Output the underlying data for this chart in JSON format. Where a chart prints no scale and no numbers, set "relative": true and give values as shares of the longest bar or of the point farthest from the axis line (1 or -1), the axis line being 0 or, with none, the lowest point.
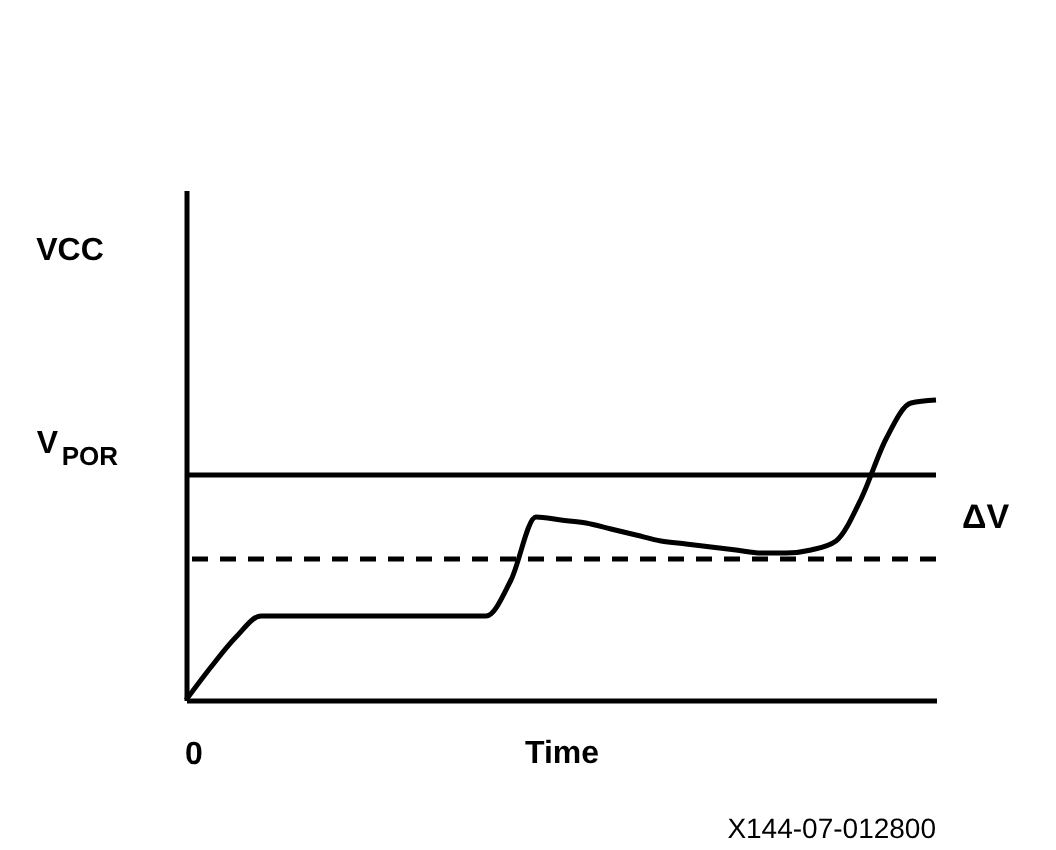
{
  "chart_data": {
    "type": "line",
    "relative": true,
    "ylabel": "VCC",
    "xlabel": "Time",
    "categories": [
      null,
      null,
      null,
      null,
      null,
      null,
      null,
      null,
      null,
      null,
      null,
      null,
      null,
      null,
      null,
      null,
      null,
      null,
      null,
      null,
      null,
      null,
      null,
      null,
      null,
      null,
      null,
      null,
      null,
      null,
      null
    ],
    "series": [
      {
        "color": "#000000",
        "values": [
          0,
          0.11,
          0.21,
          0.28,
          0.28,
          0.28,
          0.28,
          0.28,
          0.28,
          0.28,
          0.28,
          0.28,
          0.28,
          0.4,
          0.61,
          0.6,
          0.59,
          0.57,
          0.55,
          0.53,
          0.52,
          0.51,
          0.5,
          0.49,
          0.49,
          0.5,
          0.53,
          0.67,
          0.87,
          0.99,
          1
        ]
      }
    ],
    "ref_lines": [
      {
        "axis": "y",
        "value": 0.75,
        "label": "V$_{POR}$",
        "color": "#000000",
        "line_style": "solid"
      },
      {
        "axis": "y",
        "value": 0.47,
        "color": "#000000",
        "line_style": "dashed"
      }
    ],
    "annotations": [
      "ΔV",
      "0",
      "X144-07-012800"
    ],
    "line_style": "solid",
    "marker": "none",
    "grid": false
  }
}
